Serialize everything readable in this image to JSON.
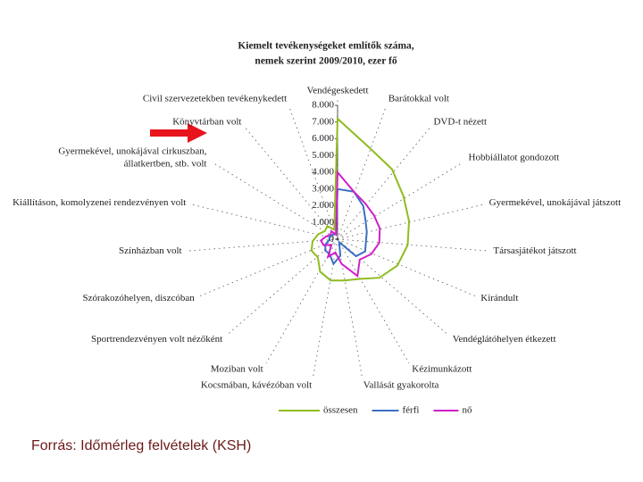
{
  "chart_data": {
    "type": "radar",
    "title_lines": [
      "Kiemelt tevékenységeket említők száma,",
      "nemek szerint 2009/2010, ezer fő"
    ],
    "categories": [
      "Vendégeskedett",
      "Barátokkal volt",
      "DVD-t nézett",
      "Hobbiállatot gondozott",
      "Gyermekével, unokájával játszott",
      "Társasjátékot játszott",
      "Kirándult",
      "Vendéglátóhelyen étkezett",
      "Kézimunkázott",
      "Vallását gyakorolta",
      "Kocsmában, kávézóban volt",
      "Moziban volt",
      "Sportrendezvényen volt nézőként",
      "Szórakozóhelyen, diszcóban",
      "Színházban volt",
      "Kiállításon, komolyzenei rendezvényen volt",
      [
        "Gyermekével, unokájával cirkuszban,",
        "állatkertben, stb. volt"
      ],
      "Könyvtárban volt",
      "Civil szervezetekben tevékenykedett"
    ],
    "series": [
      {
        "name": "összesen",
        "color": "#8fbc1f",
        "values": [
          7200,
          5800,
          5300,
          4700,
          4400,
          4200,
          3900,
          3400,
          2700,
          2500,
          2500,
          2200,
          1600,
          1700,
          1500,
          1200,
          900,
          1000,
          600
        ]
      },
      {
        "name": "férfi",
        "color": "#3b6fc4",
        "values": [
          3000,
          3000,
          2500,
          2000,
          1800,
          1700,
          1800,
          1500,
          200,
          1000,
          1500,
          1000,
          1000,
          800,
          500,
          500,
          400,
          400,
          300
        ]
      },
      {
        "name": "nő",
        "color": "#d020c8",
        "values": [
          4000,
          3000,
          2700,
          2600,
          2600,
          2500,
          2200,
          1800,
          2500,
          1500,
          800,
          1200,
          500,
          900,
          1000,
          700,
          500,
          600,
          300
        ]
      }
    ],
    "rlim": [
      0,
      8000
    ],
    "rticks": [
      0,
      {
        "value": 1000,
        "label": "1.000"
      },
      {
        "value": 2000,
        "label": "2.000"
      },
      {
        "value": 3000,
        "label": "3.000"
      },
      {
        "value": 4000,
        "label": "4.000"
      },
      {
        "value": 5000,
        "label": "5.000"
      },
      {
        "value": 6000,
        "label": "6.000"
      },
      {
        "value": 7000,
        "label": "7.000"
      },
      {
        "value": 8000,
        "label": "8.000"
      }
    ],
    "source": "Forrás: Időmérleg felvételek (KSH)"
  }
}
